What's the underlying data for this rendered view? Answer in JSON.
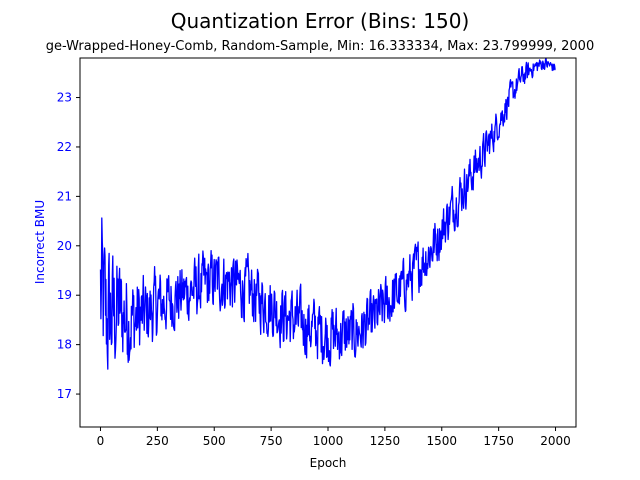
{
  "chart_data": {
    "type": "line",
    "title": "Quantization Error (Bins: 150)",
    "subtitle": "ge-Wrapped-Honey-Comb, Random-Sample, Min: 16.333334, Max: 23.799999, 2000",
    "xlabel": "Epoch",
    "ylabel": "Incorrect BMU",
    "xlim": [
      -90,
      2090
    ],
    "ylim": [
      16.333334,
      23.8
    ],
    "x_ticks": [
      0,
      250,
      500,
      750,
      1000,
      1250,
      1500,
      1750,
      2000
    ],
    "y_ticks": [
      17,
      18,
      19,
      20,
      21,
      22,
      23
    ],
    "x_tick_labels": [
      "0",
      "250",
      "500",
      "750",
      "1000",
      "1250",
      "1500",
      "1750",
      "2000"
    ],
    "y_tick_labels": [
      "17",
      "18",
      "19",
      "20",
      "21",
      "22",
      "23"
    ],
    "grid": false,
    "line_color": "#0000ff",
    "ylabel_color": "#0000ff",
    "series": [
      {
        "x": [
          0,
          25,
          50,
          75,
          100,
          150,
          200,
          250,
          300,
          350,
          400,
          450,
          500,
          550,
          600,
          650,
          700,
          750,
          800,
          850,
          900,
          950,
          1000,
          1050,
          1100,
          1150,
          1200,
          1250,
          1300,
          1350,
          1400,
          1450,
          1500,
          1550,
          1600,
          1650,
          1700,
          1750,
          1800,
          1850,
          1900,
          1950,
          2000
        ],
        "values": [
          19.0,
          18.5,
          18.6,
          18.7,
          18.6,
          18.5,
          18.6,
          18.8,
          18.9,
          19.0,
          19.1,
          19.2,
          19.3,
          19.3,
          19.2,
          19.1,
          18.9,
          18.8,
          18.6,
          18.5,
          18.4,
          18.3,
          18.2,
          18.2,
          18.2,
          18.3,
          18.5,
          18.8,
          19.0,
          19.3,
          19.6,
          19.9,
          20.3,
          20.8,
          21.2,
          21.6,
          22.0,
          22.5,
          23.0,
          23.4,
          23.6,
          23.7,
          23.6
        ],
        "noise": [
          2.8,
          2.2,
          2.0,
          1.7,
          1.5,
          1.3,
          1.1,
          1.0,
          0.9,
          0.9,
          0.9,
          0.9,
          0.9,
          0.9,
          0.9,
          0.9,
          0.9,
          0.9,
          0.9,
          0.9,
          0.9,
          0.9,
          0.9,
          0.9,
          0.85,
          0.8,
          0.8,
          0.8,
          0.8,
          0.75,
          0.75,
          0.75,
          0.7,
          0.7,
          0.65,
          0.6,
          0.55,
          0.45,
          0.4,
          0.35,
          0.25,
          0.2,
          0.15
        ]
      }
    ]
  }
}
